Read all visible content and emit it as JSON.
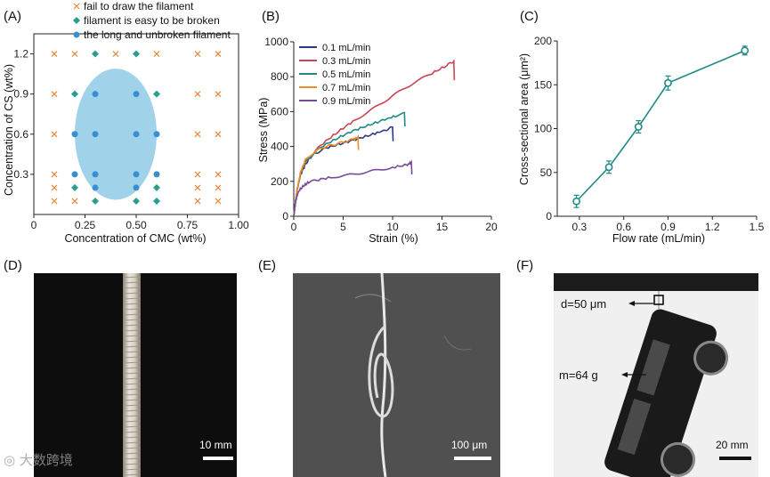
{
  "panels": {
    "a": "(A)",
    "b": "(B)",
    "c": "(C)",
    "d": "(D)",
    "e": "(E)",
    "f": "(F)"
  },
  "chart_data": [
    {
      "type": "scatter",
      "panel": "A",
      "xlabel": "Concentration of CMC (wt%)",
      "ylabel": "Concentration of CS (wt%)",
      "xlim": [
        0,
        1.0
      ],
      "ylim": [
        0,
        1.35
      ],
      "xticks": [
        "0",
        "0.25",
        "0.50",
        "0.75",
        "1.00"
      ],
      "xtick_values": [
        0,
        0.25,
        0.5,
        0.75,
        1.0
      ],
      "yticks": [
        "0.3",
        "0.6",
        "0.9",
        "1.2"
      ],
      "ytick_values": [
        0.3,
        0.6,
        0.9,
        1.2
      ],
      "region": {
        "center": [
          0.4,
          0.6
        ],
        "radius": [
          0.2,
          0.49
        ],
        "label": "unbroken region"
      },
      "series": [
        {
          "name": "fail to draw the filament",
          "marker": "x",
          "color": "#e8863a",
          "points": [
            [
              0.1,
              1.2
            ],
            [
              0.2,
              1.2
            ],
            [
              0.4,
              1.2
            ],
            [
              0.6,
              1.2
            ],
            [
              0.8,
              1.2
            ],
            [
              0.9,
              1.2
            ],
            [
              0.1,
              0.9
            ],
            [
              0.8,
              0.9
            ],
            [
              0.9,
              0.9
            ],
            [
              0.1,
              0.6
            ],
            [
              0.8,
              0.6
            ],
            [
              0.9,
              0.6
            ],
            [
              0.1,
              0.3
            ],
            [
              0.8,
              0.3
            ],
            [
              0.9,
              0.3
            ],
            [
              0.1,
              0.2
            ],
            [
              0.8,
              0.2
            ],
            [
              0.9,
              0.2
            ],
            [
              0.1,
              0.1
            ],
            [
              0.2,
              0.1
            ],
            [
              0.8,
              0.1
            ],
            [
              0.9,
              0.1
            ]
          ]
        },
        {
          "name": "filament is easy to be broken",
          "marker": "diamond",
          "color": "#2a9d8f",
          "points": [
            [
              0.3,
              1.2
            ],
            [
              0.5,
              1.2
            ],
            [
              0.2,
              0.9
            ],
            [
              0.6,
              0.9
            ],
            [
              0.2,
              0.2
            ],
            [
              0.6,
              0.2
            ],
            [
              0.3,
              0.1
            ],
            [
              0.5,
              0.1
            ],
            [
              0.6,
              0.1
            ]
          ]
        },
        {
          "name": "the long and unbroken filament",
          "marker": "circle",
          "color": "#3a8fd1",
          "points": [
            [
              0.3,
              0.9
            ],
            [
              0.5,
              0.9
            ],
            [
              0.2,
              0.6
            ],
            [
              0.3,
              0.6
            ],
            [
              0.5,
              0.6
            ],
            [
              0.6,
              0.6
            ],
            [
              0.2,
              0.3
            ],
            [
              0.3,
              0.3
            ],
            [
              0.5,
              0.3
            ],
            [
              0.6,
              0.3
            ],
            [
              0.3,
              0.2
            ],
            [
              0.5,
              0.2
            ]
          ]
        }
      ]
    },
    {
      "type": "line",
      "panel": "B",
      "xlabel": "Strain (%)",
      "ylabel": "Stress (MPa)",
      "xlim": [
        0,
        20
      ],
      "ylim": [
        0,
        1000
      ],
      "xticks": [
        "0",
        "5",
        "10",
        "15",
        "20"
      ],
      "xtick_values": [
        0,
        5,
        10,
        15,
        20
      ],
      "yticks": [
        "0",
        "200",
        "400",
        "600",
        "800",
        "1000"
      ],
      "ytick_values": [
        0,
        200,
        400,
        600,
        800,
        1000
      ],
      "series": [
        {
          "name": "0.1 mL/min",
          "color": "#2b3a80",
          "x": [
            0,
            0.3,
            0.7,
            1.2,
            1.8,
            2.5,
            3.5,
            5,
            6.5,
            8,
            9.3,
            10,
            10.05
          ],
          "y": [
            0,
            140,
            240,
            300,
            345,
            370,
            395,
            420,
            445,
            470,
            495,
            510,
            430
          ]
        },
        {
          "name": "0.3 mL/min",
          "color": "#cc4455",
          "x": [
            0,
            0.3,
            0.7,
            1.2,
            2,
            3,
            4.5,
            6,
            8,
            10,
            12,
            14,
            15.5,
            16.2,
            16.25
          ],
          "y": [
            0,
            140,
            250,
            310,
            365,
            420,
            485,
            545,
            615,
            690,
            760,
            820,
            865,
            890,
            780
          ]
        },
        {
          "name": "0.5 mL/min",
          "color": "#1f8a85",
          "x": [
            0,
            0.3,
            0.7,
            1.2,
            2,
            3,
            4.5,
            6,
            7.5,
            9,
            10.3,
            11.2,
            11.25
          ],
          "y": [
            0,
            140,
            250,
            315,
            360,
            405,
            450,
            490,
            520,
            550,
            575,
            595,
            515
          ]
        },
        {
          "name": "0.7 mL/min",
          "color": "#f08a24",
          "x": [
            0,
            0.3,
            0.7,
            1.2,
            2,
            3,
            4,
            5,
            6,
            6.5,
            6.55
          ],
          "y": [
            0,
            140,
            255,
            325,
            365,
            395,
            410,
            425,
            440,
            455,
            380
          ]
        },
        {
          "name": "0.9 mL/min",
          "color": "#7a4a9a",
          "x": [
            0,
            0.2,
            0.5,
            1,
            1.5,
            2.5,
            4,
            6,
            8,
            10,
            11.5,
            11.9,
            11.95
          ],
          "y": [
            0,
            90,
            145,
            175,
            195,
            210,
            225,
            240,
            260,
            280,
            295,
            310,
            240
          ]
        }
      ]
    },
    {
      "type": "line",
      "panel": "C",
      "xlabel": "Flow rate (mL/min)",
      "ylabel": "Cross-sectional area (μm²)",
      "xlim": [
        0.15,
        1.5
      ],
      "ylim": [
        0,
        200
      ],
      "xticks": [
        "0.3",
        "0.6",
        "0.9",
        "1.2",
        "1.5"
      ],
      "xtick_values": [
        0.3,
        0.6,
        0.9,
        1.2,
        1.5
      ],
      "yticks": [
        "0",
        "50",
        "100",
        "150",
        "200"
      ],
      "ytick_values": [
        0,
        50,
        100,
        150,
        200
      ],
      "color": "#1f8a85",
      "x": [
        0.28,
        0.5,
        0.7,
        0.9,
        1.42
      ],
      "y": [
        17,
        56,
        102,
        152,
        189
      ],
      "err": [
        7,
        7,
        7,
        8,
        5
      ]
    }
  ],
  "photos": {
    "d_scale": "10 mm",
    "e_scale": "100 μm",
    "f_scale": "20 mm",
    "f_diameter": "d=50 μm",
    "f_mass": "m=64 g"
  },
  "watermark": "大数跨境"
}
